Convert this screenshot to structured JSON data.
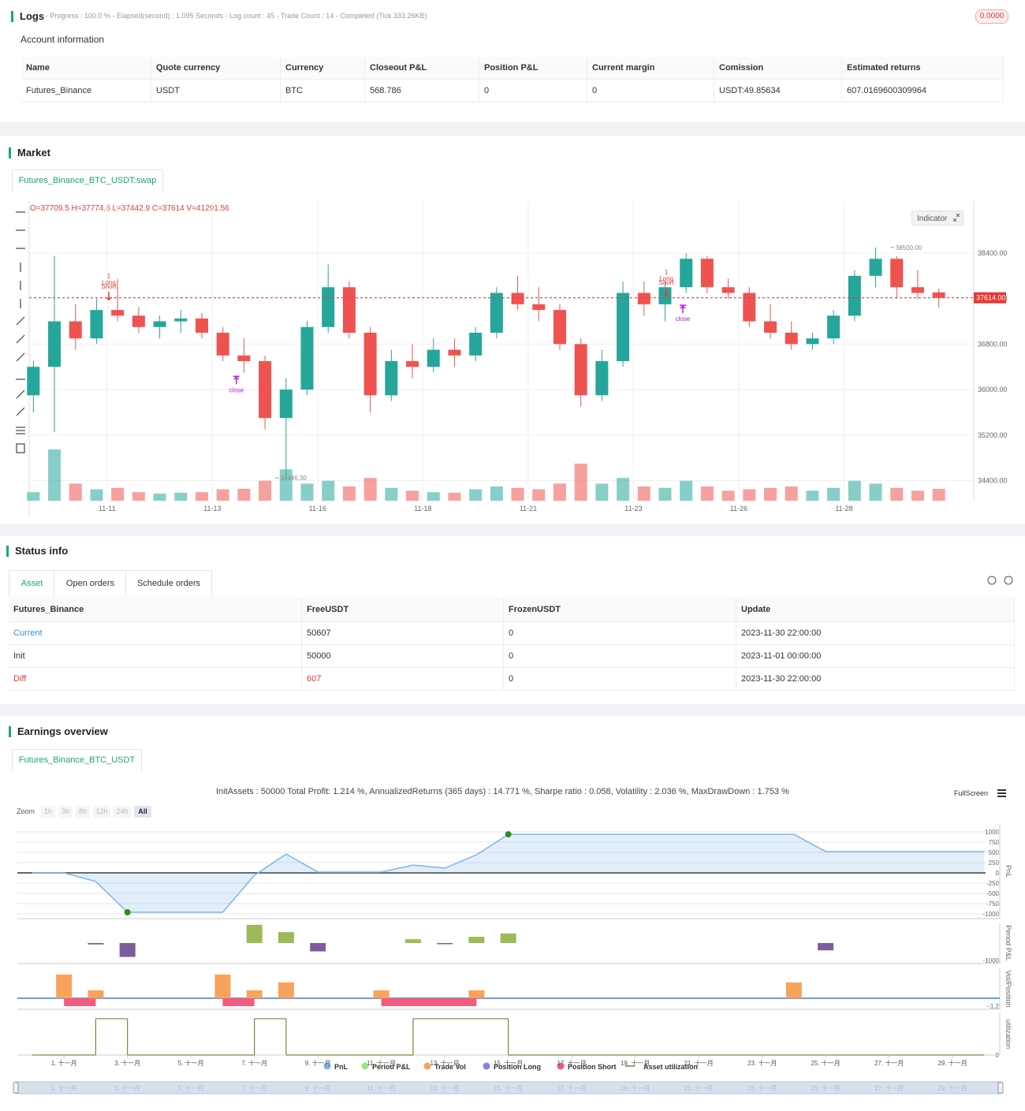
{
  "logs": {
    "title": "Logs",
    "progress": "- Progress : 100.0 % - Elapsed(second) : 1.095 Seconds - Log count : 45 - Trade Count : 14 - Completed (Tick 333.26KB)",
    "badge": "0.0000"
  },
  "account": {
    "title": "Account information",
    "columns": [
      "Name",
      "Quote currency",
      "Currency",
      "Closeout P&L",
      "Position P&L",
      "Current margin",
      "Comission",
      "Estimated returns"
    ],
    "rows": [
      [
        "Futures_Binance",
        "USDT",
        "BTC",
        "568.786",
        "0",
        "0",
        "USDT:49.85634",
        "607.0169600309964"
      ]
    ]
  },
  "market": {
    "title": "Market",
    "tab": "Futures_Binance_BTC_USDT:swap",
    "indicator": "Indicator",
    "ohlc": "O=37709.5 H=37774.6 L=37442.9 C=37614 V=41291.56"
  },
  "status": {
    "title": "Status info",
    "tabs": [
      "Asset",
      "Open orders",
      "Schedule orders"
    ],
    "columns": [
      "Futures_Binance",
      "FreeUSDT",
      "FrozenUSDT",
      "Update"
    ],
    "rows": [
      [
        "Current",
        "50607",
        "0",
        "2023-11-30 22:00:00"
      ],
      [
        "Init",
        "50000",
        "0",
        "2023-11-01 00:00:00"
      ],
      [
        "Diff",
        "607",
        "0",
        "2023-11-30 22:00:00"
      ]
    ]
  },
  "earnings": {
    "title": "Earnings overview",
    "tab": "Futures_Binance_BTC_USDT",
    "stats": "InitAssets : 50000 Total Profit: 1.214 %, AnnualizedReturns (365 days) : 14.771 %, Sharpe ratio : 0.058, Volatility : 2.036 %, MaxDrawDown : 1.753 %",
    "fullscreen": "FullScreen",
    "zoom_label": "Zoom",
    "zoom": [
      "1h",
      "3h",
      "8h",
      "12h",
      "24h",
      "All"
    ]
  },
  "chart_data": [
    {
      "type": "candlestick",
      "up_color": "#26a69a",
      "down_color": "#ef5350",
      "x": [
        9.25,
        9.75,
        10.25,
        10.75,
        11.25,
        11.75,
        12.25,
        12.75,
        13.25,
        13.75,
        14.25,
        14.75,
        15.25,
        15.75,
        16.25,
        16.75,
        17.25,
        17.75,
        18.25,
        18.75,
        19.25,
        19.75,
        20.25,
        20.75,
        21.25,
        21.75,
        22.25,
        22.75,
        23.25,
        23.75,
        24.25,
        24.75,
        25.25,
        25.75,
        26.25,
        26.75,
        27.25,
        27.75,
        28.25,
        28.75,
        29.25,
        29.75,
        30.25,
        30.75
      ],
      "open": [
        35900,
        36400,
        37200,
        36900,
        37400,
        37300,
        37100,
        37200,
        37250,
        37000,
        36600,
        36500,
        35500,
        36000,
        37100,
        37800,
        37000,
        35900,
        36500,
        36400,
        36700,
        36600,
        37000,
        37700,
        37500,
        37400,
        36800,
        35900,
        36500,
        37700,
        37500,
        37800,
        38300,
        37800,
        37700,
        37200,
        37000,
        36800,
        36900,
        37300,
        38000,
        38300,
        37800,
        37709.5
      ],
      "high": [
        36500,
        38350,
        37500,
        37600,
        37950,
        37450,
        37300,
        37400,
        37350,
        37100,
        36900,
        36600,
        36200,
        37200,
        38200,
        37900,
        37100,
        36700,
        36800,
        36900,
        36900,
        37100,
        37800,
        38000,
        37800,
        37500,
        36900,
        36700,
        37900,
        37900,
        37900,
        38400,
        38350,
        37950,
        37800,
        37500,
        37200,
        37000,
        37400,
        38100,
        38500,
        38350,
        38100,
        37774.6
      ],
      "low": [
        35600,
        35250,
        36700,
        36800,
        37200,
        37000,
        36900,
        37000,
        36900,
        36500,
        36300,
        35300,
        34446.3,
        35900,
        37000,
        36900,
        35600,
        35800,
        36200,
        36300,
        36400,
        36500,
        36900,
        37400,
        37200,
        36700,
        35700,
        35800,
        36400,
        37300,
        37200,
        37700,
        37700,
        37600,
        37100,
        36900,
        36700,
        36700,
        36800,
        37200,
        37800,
        37600,
        37600,
        37442.9
      ],
      "close": [
        36400,
        37200,
        36900,
        37400,
        37300,
        37100,
        37200,
        37250,
        37000,
        36600,
        36500,
        35500,
        36000,
        37100,
        37800,
        37000,
        35900,
        36500,
        36400,
        36700,
        36600,
        37000,
        37700,
        37500,
        37400,
        36800,
        35900,
        36500,
        37700,
        37500,
        37800,
        38300,
        37800,
        37700,
        37200,
        37000,
        36800,
        36900,
        37300,
        38000,
        38300,
        37800,
        37700,
        37614
      ],
      "volume": [
        30000,
        180000,
        60000,
        40000,
        45000,
        30000,
        25000,
        28000,
        30000,
        40000,
        42000,
        70000,
        110000,
        60000,
        70000,
        50000,
        80000,
        45000,
        35000,
        30000,
        28000,
        40000,
        50000,
        45000,
        40000,
        60000,
        130000,
        60000,
        80000,
        50000,
        45000,
        70000,
        50000,
        35000,
        40000,
        45000,
        50000,
        35000,
        45000,
        70000,
        60000,
        45000,
        35000,
        41291.56
      ],
      "xlim": [
        9.15,
        31.58
      ],
      "ylim": [
        34046,
        39315
      ],
      "xticks": [
        {
          "value": 11,
          "label": "11-11"
        },
        {
          "value": 13.5,
          "label": "11-13"
        },
        {
          "value": 16,
          "label": "11-16"
        },
        {
          "value": 18.5,
          "label": "11-18"
        },
        {
          "value": 21,
          "label": "11-21"
        },
        {
          "value": 23.5,
          "label": "11-23"
        },
        {
          "value": 26,
          "label": "11-26"
        },
        {
          "value": 28.5,
          "label": "11-28"
        }
      ],
      "yticks": [
        {
          "value": 38400,
          "label": "38400.00"
        },
        {
          "value": 37600,
          "label": "37600.00"
        },
        {
          "value": 36800,
          "label": "36800.00"
        },
        {
          "value": 36000,
          "label": "36000.00"
        },
        {
          "value": 35200,
          "label": "35200.00"
        },
        {
          "value": 34400,
          "label": "34400.00"
        }
      ],
      "last_price": 37614,
      "last_price_label": "37614.00",
      "annotations": [
        {
          "x": 29.61,
          "y": 38500,
          "label": "38500.00"
        },
        {
          "x": 15.0,
          "y": 34446.3,
          "label": "34446.30"
        }
      ],
      "signals": [
        {
          "x": 11.04,
          "y": 37580,
          "color": "#e53935",
          "labels": [
            "1",
            "Long",
            "Short"
          ]
        },
        {
          "x": 24.28,
          "y": 37650,
          "color": "#e53935",
          "labels": [
            "1",
            "Long",
            "Short"
          ]
        }
      ],
      "closes": [
        {
          "x": 14.07,
          "y": 36150,
          "color": "#b620e0",
          "label": "close"
        },
        {
          "x": 24.67,
          "y": 37400,
          "color": "#b620e0",
          "label": "close"
        }
      ]
    },
    {
      "type": "area",
      "y_label": "PnL",
      "xlim": [
        -0.47,
        30.04
      ],
      "ylim": [
        -1115,
        1192
      ],
      "yticks": [
        1000,
        750,
        500,
        250,
        0,
        -250,
        -500,
        -750,
        -1000
      ],
      "series": [
        {
          "name": "PnL",
          "color": "#7cb5ec",
          "x": [
            0,
            1,
            2,
            3,
            6,
            7,
            8,
            9,
            11,
            12,
            13,
            14,
            15,
            24,
            25,
            30
          ],
          "values": [
            0,
            0,
            -210,
            -960,
            -960,
            -60,
            460,
            20,
            20,
            190,
            115,
            440,
            940,
            940,
            520,
            520
          ]
        }
      ]
    },
    {
      "type": "bar",
      "y_label": "Period P&L",
      "xlim": [
        -0.47,
        30.04
      ],
      "ylim": [
        -1182,
        1182
      ],
      "yticks": [
        -1000
      ],
      "series": [
        {
          "name": "Period P&L",
          "color": "#90ed7d",
          "bar_color": "#9bbb59",
          "negative_color": "#7e5b9a",
          "x": [
            2,
            3,
            7,
            8,
            9,
            12,
            13,
            14,
            15,
            25
          ],
          "values": [
            -80,
            -800,
            1050,
            630,
            -480,
            220,
            -60,
            360,
            550,
            -420
          ]
        }
      ]
    },
    {
      "type": "bar",
      "y_label": "Vol/Position",
      "xlim": [
        -0.47,
        30.04
      ],
      "ylim": [
        -1.68,
        4.56
      ],
      "yticks": [
        -1.2
      ],
      "series": [
        {
          "name": "Trade Vol",
          "color": "#f7a35c",
          "x": [
            1,
            2,
            6,
            7,
            8,
            11,
            14,
            24
          ],
          "values": [
            3.6,
            1.2,
            3.6,
            1.2,
            2.4,
            1.2,
            1.2,
            2.4
          ]
        },
        {
          "name": "Position Long",
          "color": "#8085e9",
          "x": [],
          "values": []
        },
        {
          "name": "Position Short",
          "color": "#f15c80",
          "x": [
            1,
            6,
            11
          ],
          "x_end": [
            2,
            7,
            14
          ],
          "values": [
            -1.2,
            -1.2,
            -1.2
          ]
        }
      ]
    },
    {
      "type": "step",
      "y_label": "utilization",
      "xlim": [
        -0.47,
        30.04
      ],
      "ylim": [
        0,
        1.15
      ],
      "yticks": [
        0
      ],
      "xticks": [
        {
          "value": 1,
          "label": "1. 十一月"
        },
        {
          "value": 3,
          "label": "3. 十一月"
        },
        {
          "value": 5,
          "label": "5. 十一月"
        },
        {
          "value": 7,
          "label": "7. 十一月"
        },
        {
          "value": 9,
          "label": "9. 十一月"
        },
        {
          "value": 11,
          "label": "11. 十一月"
        },
        {
          "value": 13,
          "label": "13. 十一月"
        },
        {
          "value": 15,
          "label": "15. 十一月"
        },
        {
          "value": 17,
          "label": "17. 十一月"
        },
        {
          "value": 19,
          "label": "19. 十一月"
        },
        {
          "value": 21,
          "label": "21. 十一月"
        },
        {
          "value": 23,
          "label": "23. 十一月"
        },
        {
          "value": 25,
          "label": "25. 十一月"
        },
        {
          "value": 27,
          "label": "27. 十一月"
        },
        {
          "value": 29,
          "label": "29. 十一月"
        }
      ],
      "series": [
        {
          "name": "Asset utilization",
          "color": "#8d7d3a",
          "x": [
            0,
            2,
            3,
            7,
            8,
            12,
            15,
            30
          ],
          "values": [
            0,
            1,
            0,
            1,
            0,
            1,
            0,
            0
          ]
        }
      ]
    }
  ]
}
